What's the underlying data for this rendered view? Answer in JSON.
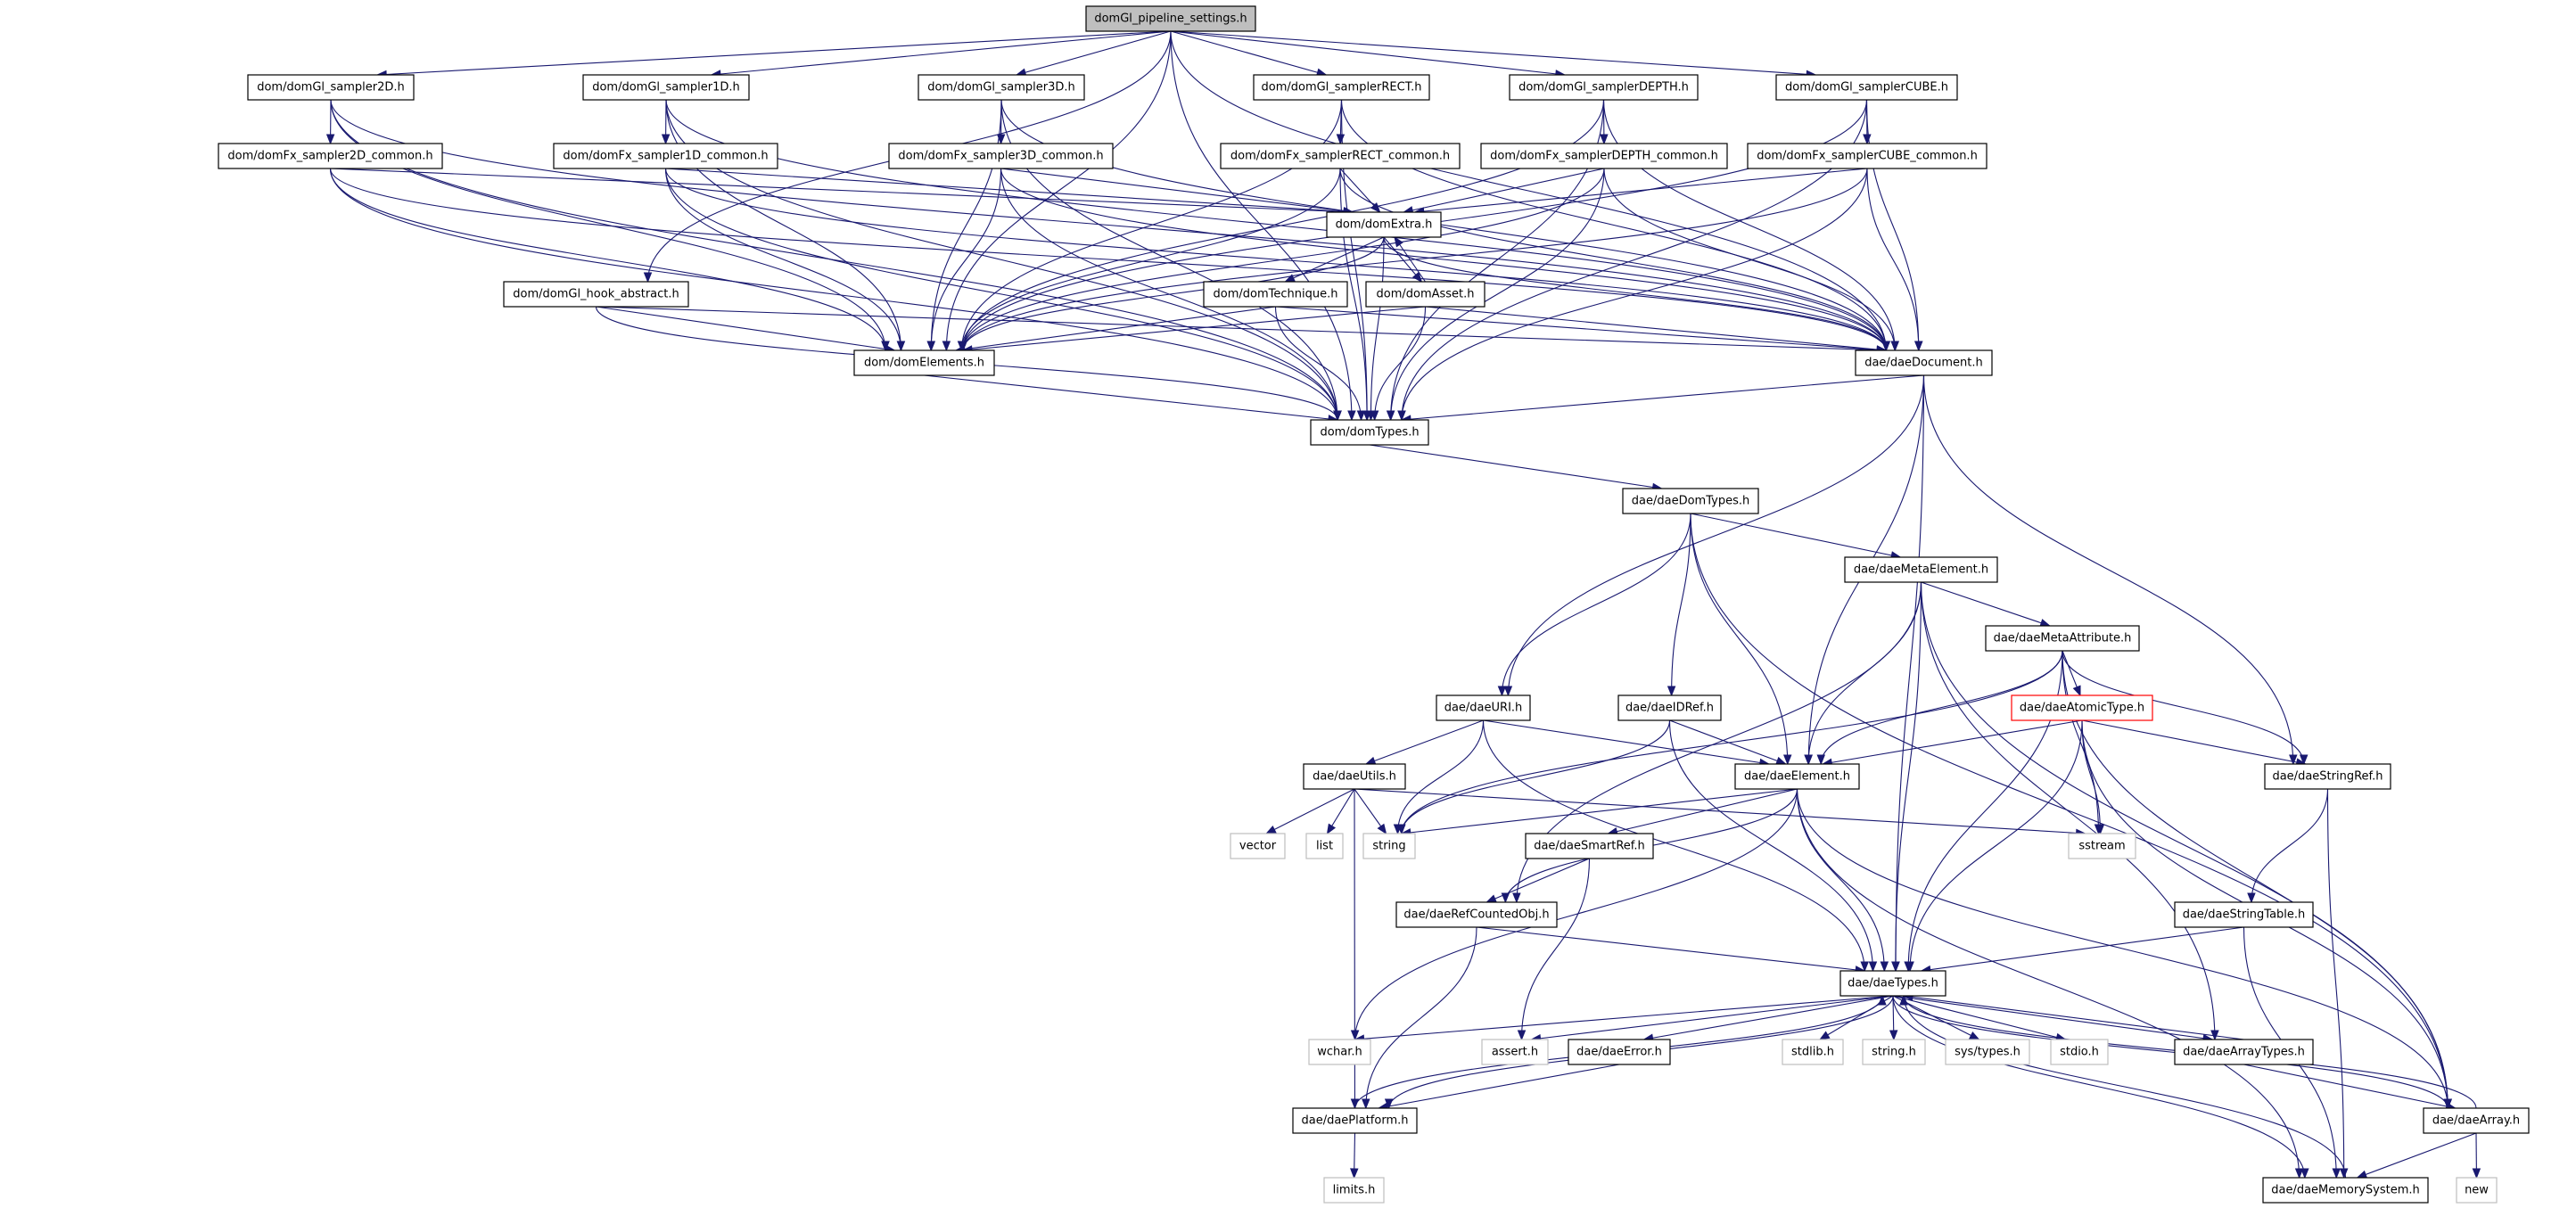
{
  "graph": {
    "edge_color": "#191970",
    "root_fill": "#bfbfbf",
    "nodes": [
      {
        "id": "root",
        "label": "domGl_pipeline_settings.h",
        "style": "root"
      },
      {
        "id": "s2d",
        "label": "dom/domGl_sampler2D.h",
        "style": "normal"
      },
      {
        "id": "s1d",
        "label": "dom/domGl_sampler1D.h",
        "style": "normal"
      },
      {
        "id": "s3d",
        "label": "dom/domGl_sampler3D.h",
        "style": "normal"
      },
      {
        "id": "srect",
        "label": "dom/domGl_samplerRECT.h",
        "style": "normal"
      },
      {
        "id": "sdepth",
        "label": "dom/domGl_samplerDEPTH.h",
        "style": "normal"
      },
      {
        "id": "scube",
        "label": "dom/domGl_samplerCUBE.h",
        "style": "normal"
      },
      {
        "id": "f2d",
        "label": "dom/domFx_sampler2D_common.h",
        "style": "normal"
      },
      {
        "id": "f1d",
        "label": "dom/domFx_sampler1D_common.h",
        "style": "normal"
      },
      {
        "id": "f3d",
        "label": "dom/domFx_sampler3D_common.h",
        "style": "normal"
      },
      {
        "id": "frect",
        "label": "dom/domFx_samplerRECT_common.h",
        "style": "normal"
      },
      {
        "id": "fdepth",
        "label": "dom/domFx_samplerDEPTH_common.h",
        "style": "normal"
      },
      {
        "id": "fcube",
        "label": "dom/domFx_samplerCUBE_common.h",
        "style": "normal"
      },
      {
        "id": "extra",
        "label": "dom/domExtra.h",
        "style": "normal"
      },
      {
        "id": "hook",
        "label": "dom/domGl_hook_abstract.h",
        "style": "normal"
      },
      {
        "id": "tech",
        "label": "dom/domTechnique.h",
        "style": "normal"
      },
      {
        "id": "asset",
        "label": "dom/domAsset.h",
        "style": "normal"
      },
      {
        "id": "elements",
        "label": "dom/domElements.h",
        "style": "normal"
      },
      {
        "id": "document",
        "label": "dae/daeDocument.h",
        "style": "normal"
      },
      {
        "id": "domtypes",
        "label": "dom/domTypes.h",
        "style": "normal"
      },
      {
        "id": "daedomtypes",
        "label": "dae/daeDomTypes.h",
        "style": "normal"
      },
      {
        "id": "metaelement",
        "label": "dae/daeMetaElement.h",
        "style": "normal"
      },
      {
        "id": "metaattr",
        "label": "dae/daeMetaAttribute.h",
        "style": "normal"
      },
      {
        "id": "uri",
        "label": "dae/daeURI.h",
        "style": "normal"
      },
      {
        "id": "idref",
        "label": "dae/daeIDRef.h",
        "style": "normal"
      },
      {
        "id": "atomic",
        "label": "dae/daeAtomicType.h",
        "style": "warn"
      },
      {
        "id": "stringref",
        "label": "dae/daeStringRef.h",
        "style": "normal"
      },
      {
        "id": "utils",
        "label": "dae/daeUtils.h",
        "style": "normal"
      },
      {
        "id": "element",
        "label": "dae/daeElement.h",
        "style": "normal"
      },
      {
        "id": "vector",
        "label": "vector",
        "style": "sys"
      },
      {
        "id": "list",
        "label": "list",
        "style": "sys"
      },
      {
        "id": "string",
        "label": "string",
        "style": "sys"
      },
      {
        "id": "smartref",
        "label": "dae/daeSmartRef.h",
        "style": "normal"
      },
      {
        "id": "sstream",
        "label": "sstream",
        "style": "sys"
      },
      {
        "id": "refcounted",
        "label": "dae/daeRefCountedObj.h",
        "style": "normal"
      },
      {
        "id": "stringtable",
        "label": "dae/daeStringTable.h",
        "style": "normal"
      },
      {
        "id": "types",
        "label": "dae/daeTypes.h",
        "style": "normal"
      },
      {
        "id": "wchar",
        "label": "wchar.h",
        "style": "sys"
      },
      {
        "id": "assert",
        "label": "assert.h",
        "style": "sys"
      },
      {
        "id": "error",
        "label": "dae/daeError.h",
        "style": "normal"
      },
      {
        "id": "stdlib",
        "label": "stdlib.h",
        "style": "sys"
      },
      {
        "id": "stringh",
        "label": "string.h",
        "style": "sys"
      },
      {
        "id": "systypes",
        "label": "sys/types.h",
        "style": "sys"
      },
      {
        "id": "stdio",
        "label": "stdio.h",
        "style": "sys"
      },
      {
        "id": "arraytypes",
        "label": "dae/daeArrayTypes.h",
        "style": "normal"
      },
      {
        "id": "platform",
        "label": "dae/daePlatform.h",
        "style": "normal"
      },
      {
        "id": "array",
        "label": "dae/daeArray.h",
        "style": "normal"
      },
      {
        "id": "limits",
        "label": "limits.h",
        "style": "sys"
      },
      {
        "id": "memsys",
        "label": "dae/daeMemorySystem.h",
        "style": "normal"
      },
      {
        "id": "new",
        "label": "new",
        "style": "sys"
      }
    ],
    "edges": [
      [
        "root",
        "s2d"
      ],
      [
        "root",
        "s1d"
      ],
      [
        "root",
        "s3d"
      ],
      [
        "root",
        "srect"
      ],
      [
        "root",
        "sdepth"
      ],
      [
        "root",
        "scube"
      ],
      [
        "root",
        "hook"
      ],
      [
        "root",
        "elements"
      ],
      [
        "root",
        "document"
      ],
      [
        "root",
        "domtypes"
      ],
      [
        "s2d",
        "f2d"
      ],
      [
        "s2d",
        "elements"
      ],
      [
        "s2d",
        "document"
      ],
      [
        "s2d",
        "domtypes"
      ],
      [
        "s1d",
        "f1d"
      ],
      [
        "s1d",
        "elements"
      ],
      [
        "s1d",
        "document"
      ],
      [
        "s1d",
        "domtypes"
      ],
      [
        "s3d",
        "f3d"
      ],
      [
        "s3d",
        "elements"
      ],
      [
        "s3d",
        "document"
      ],
      [
        "s3d",
        "domtypes"
      ],
      [
        "srect",
        "frect"
      ],
      [
        "srect",
        "elements"
      ],
      [
        "srect",
        "document"
      ],
      [
        "srect",
        "domtypes"
      ],
      [
        "sdepth",
        "fdepth"
      ],
      [
        "sdepth",
        "elements"
      ],
      [
        "sdepth",
        "document"
      ],
      [
        "sdepth",
        "domtypes"
      ],
      [
        "scube",
        "fcube"
      ],
      [
        "scube",
        "elements"
      ],
      [
        "scube",
        "document"
      ],
      [
        "scube",
        "domtypes"
      ],
      [
        "f2d",
        "extra"
      ],
      [
        "f2d",
        "elements"
      ],
      [
        "f2d",
        "document"
      ],
      [
        "f2d",
        "domtypes"
      ],
      [
        "f1d",
        "extra"
      ],
      [
        "f1d",
        "elements"
      ],
      [
        "f1d",
        "document"
      ],
      [
        "f1d",
        "domtypes"
      ],
      [
        "f3d",
        "extra"
      ],
      [
        "f3d",
        "elements"
      ],
      [
        "f3d",
        "document"
      ],
      [
        "f3d",
        "domtypes"
      ],
      [
        "frect",
        "extra"
      ],
      [
        "frect",
        "elements"
      ],
      [
        "frect",
        "document"
      ],
      [
        "frect",
        "domtypes"
      ],
      [
        "fdepth",
        "extra"
      ],
      [
        "fdepth",
        "elements"
      ],
      [
        "fdepth",
        "document"
      ],
      [
        "fdepth",
        "domtypes"
      ],
      [
        "fcube",
        "extra"
      ],
      [
        "fcube",
        "elements"
      ],
      [
        "fcube",
        "document"
      ],
      [
        "fcube",
        "domtypes"
      ],
      [
        "extra",
        "tech"
      ],
      [
        "extra",
        "asset"
      ],
      [
        "extra",
        "elements"
      ],
      [
        "extra",
        "document"
      ],
      [
        "extra",
        "domtypes"
      ],
      [
        "asset",
        "extra"
      ],
      [
        "asset",
        "elements"
      ],
      [
        "asset",
        "document"
      ],
      [
        "asset",
        "domtypes"
      ],
      [
        "tech",
        "elements"
      ],
      [
        "tech",
        "document"
      ],
      [
        "tech",
        "domtypes"
      ],
      [
        "hook",
        "elements"
      ],
      [
        "hook",
        "document"
      ],
      [
        "hook",
        "domtypes"
      ],
      [
        "elements",
        "domtypes"
      ],
      [
        "document",
        "domtypes"
      ],
      [
        "document",
        "uri"
      ],
      [
        "document",
        "element"
      ],
      [
        "document",
        "stringref"
      ],
      [
        "document",
        "types"
      ],
      [
        "domtypes",
        "daedomtypes"
      ],
      [
        "daedomtypes",
        "metaelement"
      ],
      [
        "daedomtypes",
        "uri"
      ],
      [
        "daedomtypes",
        "idref"
      ],
      [
        "daedomtypes",
        "element"
      ],
      [
        "daedomtypes",
        "array"
      ],
      [
        "metaelement",
        "metaattr"
      ],
      [
        "metaelement",
        "element"
      ],
      [
        "metaelement",
        "types"
      ],
      [
        "metaelement",
        "refcounted"
      ],
      [
        "metaelement",
        "arraytypes"
      ],
      [
        "metaelement",
        "array"
      ],
      [
        "metaattr",
        "atomic"
      ],
      [
        "metaattr",
        "element"
      ],
      [
        "metaattr",
        "types"
      ],
      [
        "metaattr",
        "stringref"
      ],
      [
        "metaattr",
        "string"
      ],
      [
        "metaattr",
        "sstream"
      ],
      [
        "metaattr",
        "array"
      ],
      [
        "atomic",
        "element"
      ],
      [
        "atomic",
        "types"
      ],
      [
        "atomic",
        "stringref"
      ],
      [
        "atomic",
        "sstream"
      ],
      [
        "atomic",
        "array"
      ],
      [
        "uri",
        "utils"
      ],
      [
        "uri",
        "element"
      ],
      [
        "uri",
        "types"
      ],
      [
        "uri",
        "string"
      ],
      [
        "idref",
        "element"
      ],
      [
        "idref",
        "types"
      ],
      [
        "idref",
        "string"
      ],
      [
        "utils",
        "vector"
      ],
      [
        "utils",
        "list"
      ],
      [
        "utils",
        "string"
      ],
      [
        "utils",
        "sstream"
      ],
      [
        "utils",
        "platform"
      ],
      [
        "element",
        "string"
      ],
      [
        "element",
        "smartref"
      ],
      [
        "element",
        "refcounted"
      ],
      [
        "element",
        "wchar"
      ],
      [
        "element",
        "types"
      ],
      [
        "element",
        "memsys"
      ],
      [
        "element",
        "array"
      ],
      [
        "smartref",
        "refcounted"
      ],
      [
        "smartref",
        "assert"
      ],
      [
        "refcounted",
        "types"
      ],
      [
        "refcounted",
        "platform"
      ],
      [
        "stringref",
        "stringtable"
      ],
      [
        "stringref",
        "memsys"
      ],
      [
        "stringtable",
        "types"
      ],
      [
        "stringtable",
        "memsys"
      ],
      [
        "types",
        "wchar"
      ],
      [
        "types",
        "assert"
      ],
      [
        "types",
        "error"
      ],
      [
        "types",
        "stdlib"
      ],
      [
        "types",
        "stringh"
      ],
      [
        "types",
        "systypes"
      ],
      [
        "types",
        "stdio"
      ],
      [
        "types",
        "arraytypes"
      ],
      [
        "types",
        "array"
      ],
      [
        "types",
        "platform"
      ],
      [
        "types",
        "memsys"
      ],
      [
        "error",
        "platform"
      ],
      [
        "arraytypes",
        "types"
      ],
      [
        "arraytypes",
        "array"
      ],
      [
        "array",
        "memsys"
      ],
      [
        "array",
        "new"
      ],
      [
        "array",
        "types"
      ],
      [
        "memsys",
        "types"
      ],
      [
        "platform",
        "limits"
      ],
      [
        "platform",
        "types"
      ]
    ]
  }
}
